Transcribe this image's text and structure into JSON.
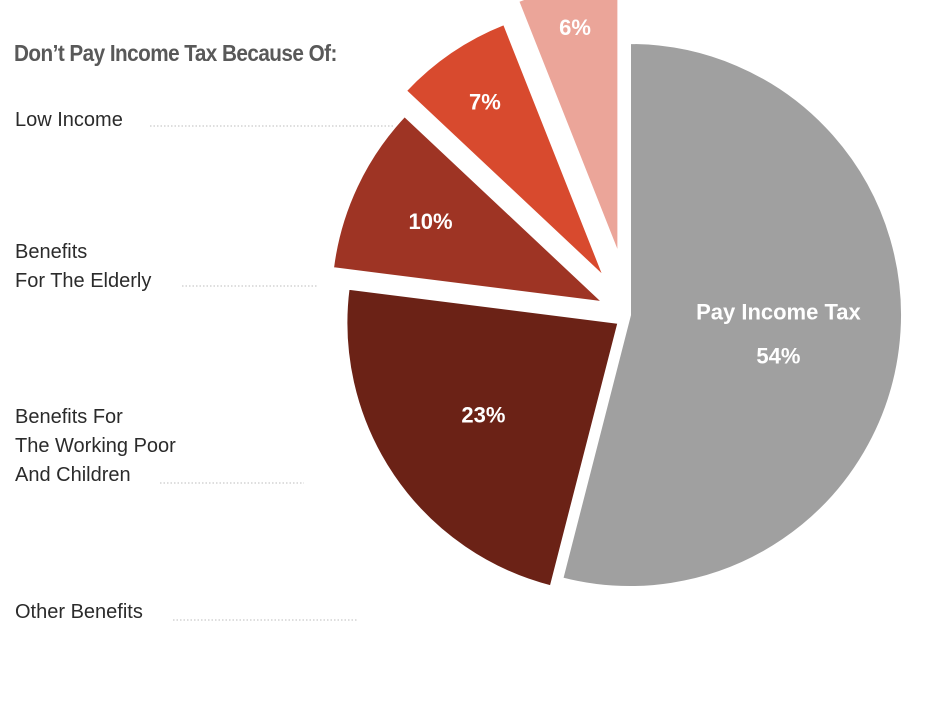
{
  "chart_data": {
    "type": "pie",
    "title": "Don’t Pay Income Tax Because Of:",
    "slices": [
      {
        "label": "Pay Income Tax",
        "value": 54,
        "display": "54%",
        "color": "#a0a0a0",
        "exploded": false
      },
      {
        "label_lines": [
          "Low Income"
        ],
        "value": 23,
        "display": "23%",
        "color": "#6b2216",
        "exploded": true
      },
      {
        "label_lines": [
          "Benefits",
          "For The Elderly"
        ],
        "value": 10,
        "display": "10%",
        "color": "#9e3424",
        "exploded": true
      },
      {
        "label_lines": [
          "Benefits For",
          "The Working Poor",
          "And Children"
        ],
        "value": 7,
        "display": "7%",
        "color": "#d84a2e",
        "exploded": true
      },
      {
        "label_lines": [
          "Other Benefits"
        ],
        "value": 6,
        "display": "6%",
        "color": "#eba599",
        "exploded": true
      }
    ]
  }
}
